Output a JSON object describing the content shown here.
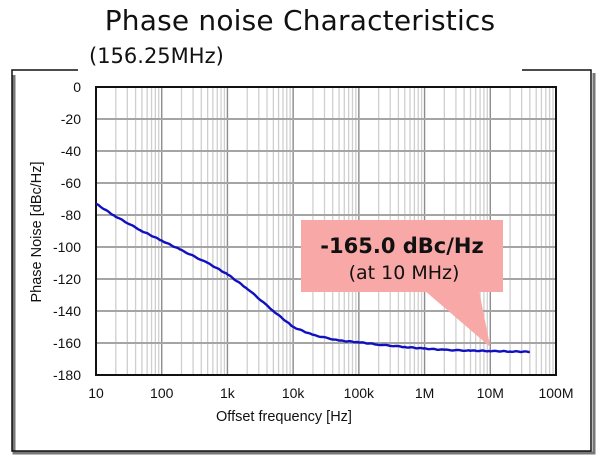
{
  "chart_data": {
    "type": "line",
    "title": "Phase noise Characteristics",
    "subtitle": "(156.25MHz)",
    "xlabel": "Offset frequency [Hz]",
    "ylabel": "Phase Noise [dBc/Hz]",
    "xscale": "log",
    "xlim": [
      10,
      100000000
    ],
    "ylim": [
      -180,
      0
    ],
    "grid": true,
    "x_ticks": [
      {
        "value": 10,
        "label": "10"
      },
      {
        "value": 100,
        "label": "100"
      },
      {
        "value": 1000,
        "label": "1k"
      },
      {
        "value": 10000,
        "label": "10k"
      },
      {
        "value": 100000,
        "label": "100k"
      },
      {
        "value": 1000000,
        "label": "1M"
      },
      {
        "value": 10000000,
        "label": "10M"
      },
      {
        "value": 100000000,
        "label": "100M"
      }
    ],
    "y_ticks": [
      0,
      -20,
      -40,
      -60,
      -80,
      -100,
      -120,
      -140,
      -160,
      -180
    ],
    "series": [
      {
        "name": "Phase noise",
        "color": "#1010c0",
        "x": [
          10,
          20,
          50,
          100,
          200,
          500,
          1000,
          2000,
          5000,
          10000,
          20000,
          50000,
          100000,
          200000,
          500000,
          1000000,
          2000000,
          5000000,
          10000000,
          20000000,
          40000000
        ],
        "y": [
          -73,
          -81,
          -90,
          -96,
          -102,
          -110,
          -117,
          -126,
          -140,
          -150,
          -155,
          -158.5,
          -159.5,
          -161,
          -162.5,
          -163.5,
          -164.3,
          -164.8,
          -165.0,
          -165.3,
          -165.5
        ]
      }
    ],
    "annotations": [
      {
        "line1": "-165.0 dBc/Hz",
        "line2": "(at 10 MHz)",
        "target_x": 10000000,
        "target_y": -165.0,
        "background": "#f8a8a6"
      }
    ]
  }
}
